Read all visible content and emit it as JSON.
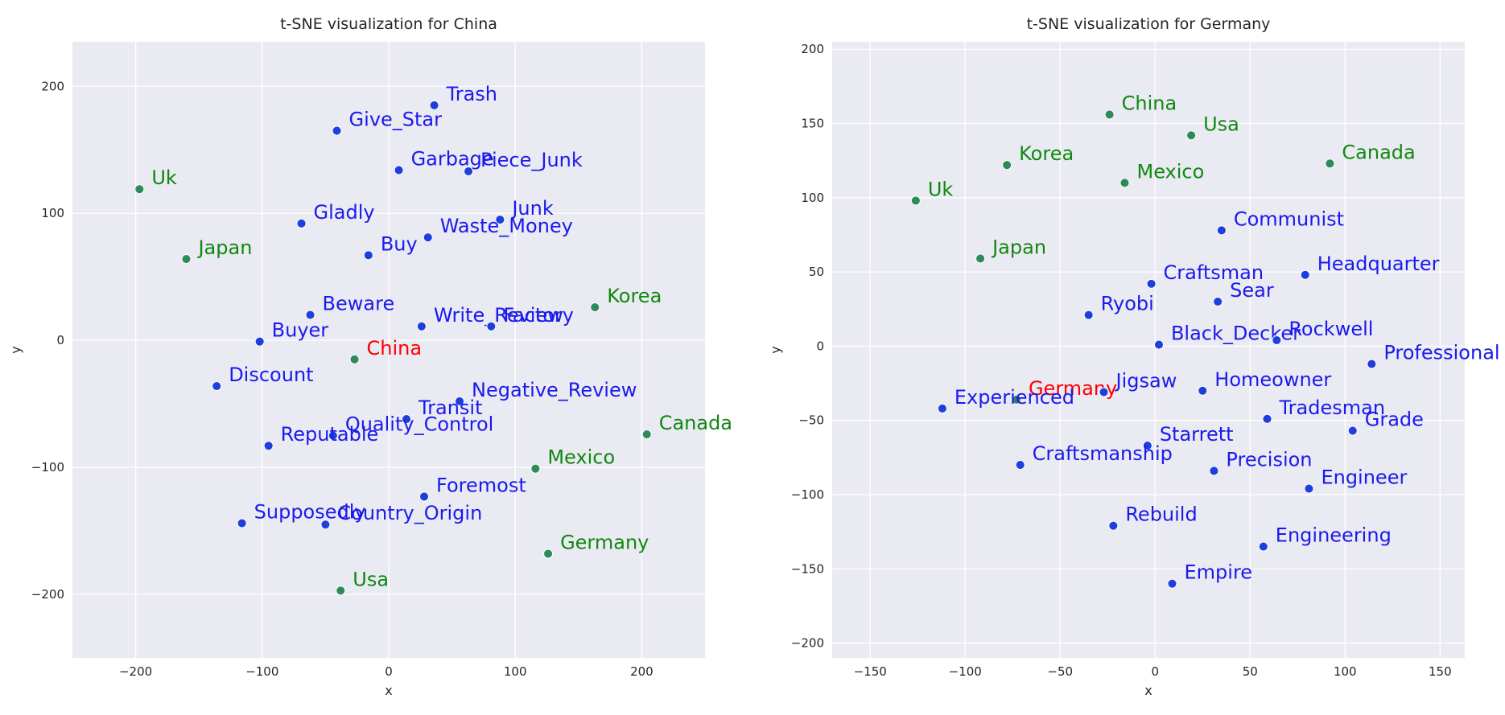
{
  "chart_data": [
    {
      "type": "scatter",
      "title": "t-SNE visualization for China",
      "xlabel": "x",
      "ylabel": "y",
      "xlim": [
        -250,
        250
      ],
      "ylim": [
        -250,
        235
      ],
      "xticks": [
        -200,
        -100,
        0,
        100,
        200
      ],
      "yticks": [
        -200,
        -100,
        0,
        100,
        200
      ],
      "grid": true,
      "colors": {
        "query": "#ff0000",
        "country": "#118811",
        "word": "#1a1aee",
        "country_marker": "#2e8b57",
        "word_marker": "#1f3fdd",
        "background": "#eaeaf2",
        "grid": "#ffffff"
      },
      "points": [
        {
          "label": "China",
          "x": -27,
          "y": -15,
          "group": "query"
        },
        {
          "label": "Uk",
          "x": -197,
          "y": 119,
          "group": "country"
        },
        {
          "label": "Japan",
          "x": -160,
          "y": 64,
          "group": "country"
        },
        {
          "label": "Korea",
          "x": 163,
          "y": 26,
          "group": "country"
        },
        {
          "label": "Canada",
          "x": 204,
          "y": -74,
          "group": "country"
        },
        {
          "label": "Mexico",
          "x": 116,
          "y": -101,
          "group": "country"
        },
        {
          "label": "Germany",
          "x": 126,
          "y": -168,
          "group": "country"
        },
        {
          "label": "Usa",
          "x": -38,
          "y": -197,
          "group": "country"
        },
        {
          "label": "Trash",
          "x": 36,
          "y": 185,
          "group": "word"
        },
        {
          "label": "Give_Star",
          "x": -41,
          "y": 165,
          "group": "word"
        },
        {
          "label": "Garbage",
          "x": 8,
          "y": 134,
          "group": "word"
        },
        {
          "label": "Piece_Junk",
          "x": 63,
          "y": 133,
          "group": "word"
        },
        {
          "label": "Gladly",
          "x": -69,
          "y": 92,
          "group": "word"
        },
        {
          "label": "Junk",
          "x": 88,
          "y": 95,
          "group": "word"
        },
        {
          "label": "Waste_Money",
          "x": 31,
          "y": 81,
          "group": "word"
        },
        {
          "label": "Buy",
          "x": -16,
          "y": 67,
          "group": "word"
        },
        {
          "label": "Beware",
          "x": -62,
          "y": 20,
          "group": "word"
        },
        {
          "label": "Write_Review",
          "x": 26,
          "y": 11,
          "group": "word"
        },
        {
          "label": "Factory",
          "x": 81,
          "y": 11,
          "group": "word"
        },
        {
          "label": "Buyer",
          "x": -102,
          "y": -1,
          "group": "word"
        },
        {
          "label": "Discount",
          "x": -136,
          "y": -36,
          "group": "word"
        },
        {
          "label": "Negative_Review",
          "x": 56,
          "y": -48,
          "group": "word"
        },
        {
          "label": "Transit",
          "x": 14,
          "y": -62,
          "group": "word"
        },
        {
          "label": "Quality_Control",
          "x": -44,
          "y": -75,
          "group": "word"
        },
        {
          "label": "Reputable",
          "x": -95,
          "y": -83,
          "group": "word"
        },
        {
          "label": "Foremost",
          "x": 28,
          "y": -123,
          "group": "word"
        },
        {
          "label": "Supposedly",
          "x": -116,
          "y": -144,
          "group": "word"
        },
        {
          "label": "Country_Origin",
          "x": -50,
          "y": -145,
          "group": "word"
        }
      ]
    },
    {
      "type": "scatter",
      "title": "t-SNE visualization for Germany",
      "xlabel": "x",
      "ylabel": "y",
      "xlim": [
        -170,
        163
      ],
      "ylim": [
        -210,
        205
      ],
      "xticks": [
        -150,
        -100,
        -50,
        0,
        50,
        100,
        150
      ],
      "yticks": [
        -200,
        -150,
        -100,
        -50,
        0,
        50,
        100,
        150,
        200
      ],
      "grid": true,
      "colors": {
        "query": "#ff0000",
        "country": "#118811",
        "word": "#1a1aee",
        "country_marker": "#2e8b57",
        "word_marker": "#1f3fdd",
        "background": "#eaeaf2",
        "grid": "#ffffff"
      },
      "points": [
        {
          "label": "Germany",
          "x": -73,
          "y": -36,
          "group": "query"
        },
        {
          "label": "China",
          "x": -24,
          "y": 156,
          "group": "country"
        },
        {
          "label": "Usa",
          "x": 19,
          "y": 142,
          "group": "country"
        },
        {
          "label": "Korea",
          "x": -78,
          "y": 122,
          "group": "country"
        },
        {
          "label": "Mexico",
          "x": -16,
          "y": 110,
          "group": "country"
        },
        {
          "label": "Canada",
          "x": 92,
          "y": 123,
          "group": "country"
        },
        {
          "label": "Uk",
          "x": -126,
          "y": 98,
          "group": "country"
        },
        {
          "label": "Japan",
          "x": -92,
          "y": 59,
          "group": "country"
        },
        {
          "label": "Communist",
          "x": 35,
          "y": 78,
          "group": "word"
        },
        {
          "label": "Craftsman",
          "x": -2,
          "y": 42,
          "group": "word"
        },
        {
          "label": "Headquarter",
          "x": 79,
          "y": 48,
          "group": "word"
        },
        {
          "label": "Sear",
          "x": 33,
          "y": 30,
          "group": "word"
        },
        {
          "label": "Ryobi",
          "x": -35,
          "y": 21,
          "group": "word"
        },
        {
          "label": "Black_Decker",
          "x": 2,
          "y": 1,
          "group": "word"
        },
        {
          "label": "Rockwell",
          "x": 64,
          "y": 4,
          "group": "word"
        },
        {
          "label": "Professional",
          "x": 114,
          "y": -12,
          "group": "word"
        },
        {
          "label": "Jigsaw",
          "x": -27,
          "y": -31,
          "group": "word"
        },
        {
          "label": "Homeowner",
          "x": 25,
          "y": -30,
          "group": "word"
        },
        {
          "label": "Experienced",
          "x": -112,
          "y": -42,
          "group": "word"
        },
        {
          "label": "Tradesman",
          "x": 59,
          "y": -49,
          "group": "word"
        },
        {
          "label": "Grade",
          "x": 104,
          "y": -57,
          "group": "word"
        },
        {
          "label": "Starrett",
          "x": -4,
          "y": -67,
          "group": "word"
        },
        {
          "label": "Craftsmanship",
          "x": -71,
          "y": -80,
          "group": "word"
        },
        {
          "label": "Precision",
          "x": 31,
          "y": -84,
          "group": "word"
        },
        {
          "label": "Engineer",
          "x": 81,
          "y": -96,
          "group": "word"
        },
        {
          "label": "Rebuild",
          "x": -22,
          "y": -121,
          "group": "word"
        },
        {
          "label": "Engineering",
          "x": 57,
          "y": -135,
          "group": "word"
        },
        {
          "label": "Empire",
          "x": 9,
          "y": -160,
          "group": "word"
        }
      ]
    }
  ]
}
